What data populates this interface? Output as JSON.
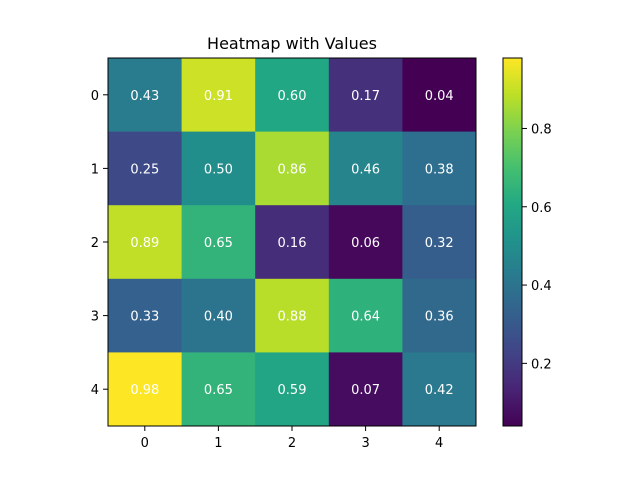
{
  "chart_data": {
    "type": "heatmap",
    "title": "Heatmap with Values",
    "xlabel": "",
    "ylabel": "",
    "x_ticks": [
      "0",
      "1",
      "2",
      "3",
      "4"
    ],
    "y_ticks": [
      "0",
      "1",
      "2",
      "3",
      "4"
    ],
    "values": [
      [
        0.43,
        0.91,
        0.6,
        0.17,
        0.04
      ],
      [
        0.25,
        0.5,
        0.86,
        0.46,
        0.38
      ],
      [
        0.89,
        0.65,
        0.16,
        0.06,
        0.32
      ],
      [
        0.33,
        0.4,
        0.88,
        0.64,
        0.36
      ],
      [
        0.98,
        0.65,
        0.59,
        0.07,
        0.42
      ]
    ],
    "colormap": "viridis",
    "color_range": [
      0.04,
      0.98
    ],
    "colorbar_ticks": [
      "0.2",
      "0.4",
      "0.6",
      "0.8"
    ],
    "value_label_color": "#ffffff",
    "grid": false
  }
}
